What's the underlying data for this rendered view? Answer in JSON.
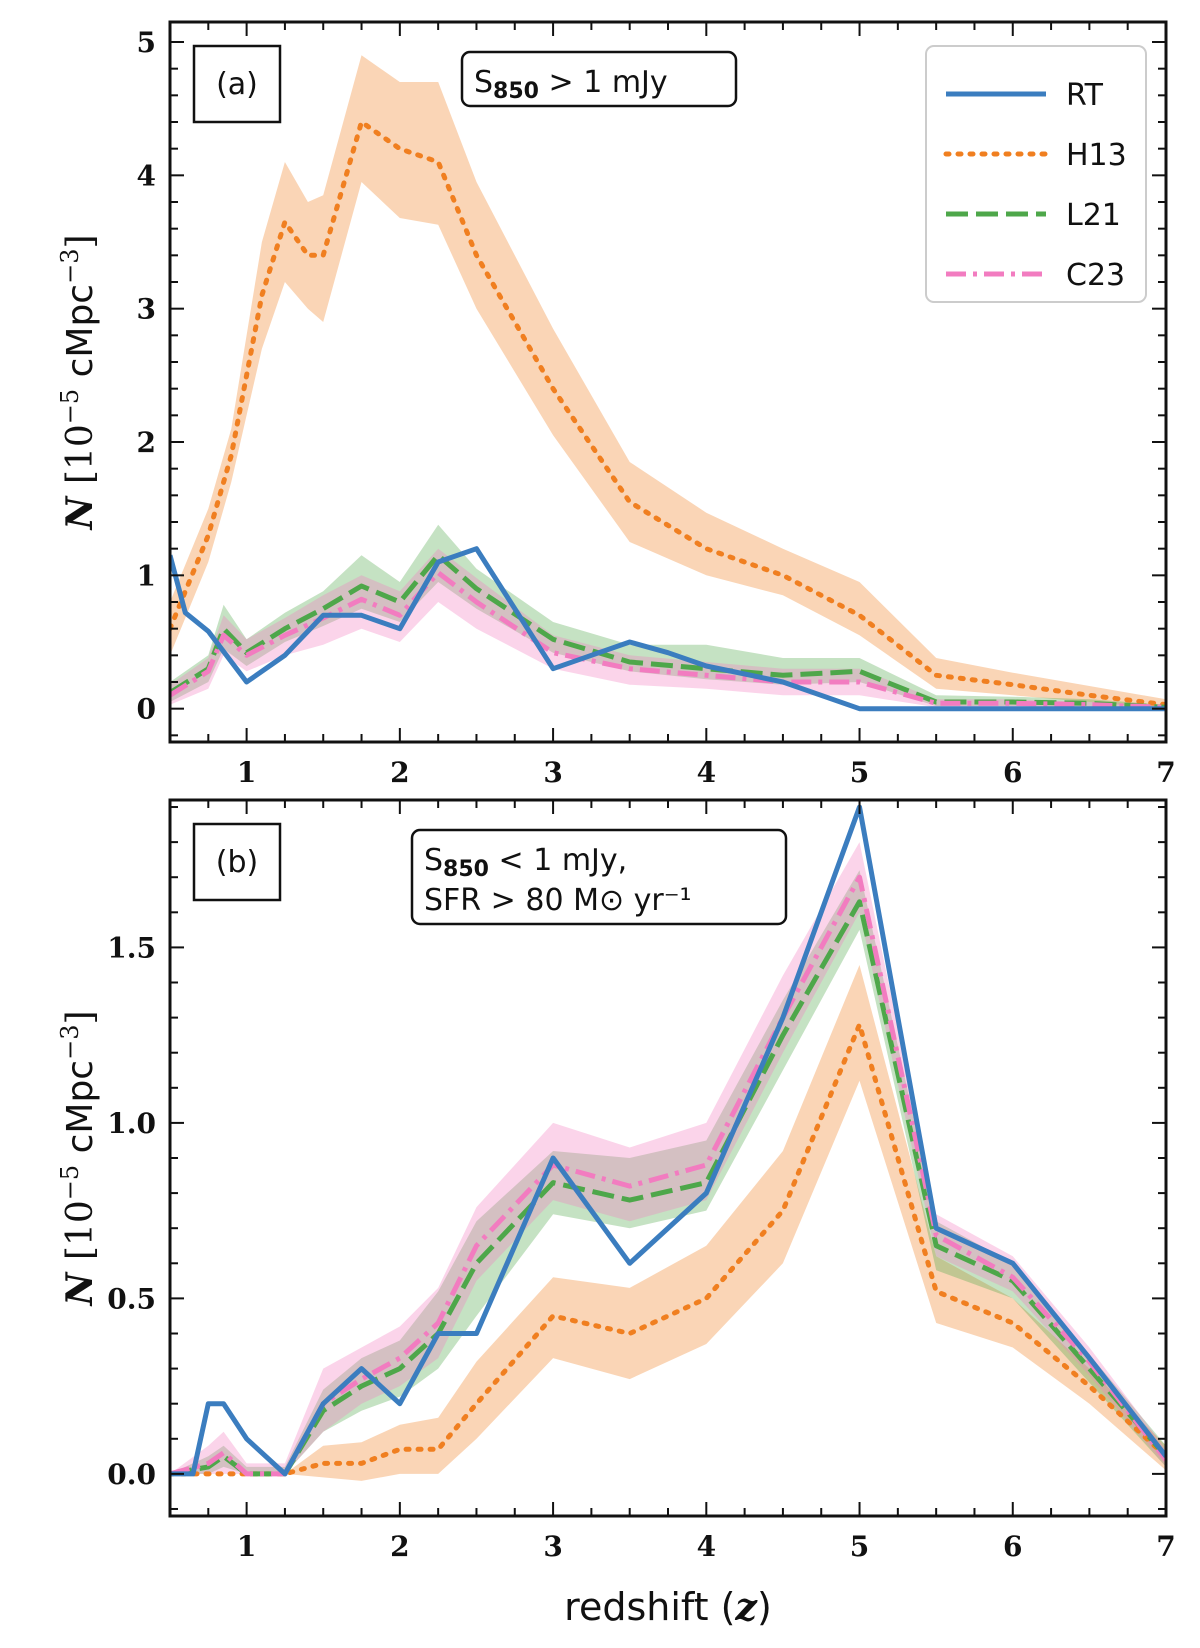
{
  "chart_data": [
    {
      "panel": "a",
      "type": "line",
      "tag": "(a)",
      "annotation": [
        "S850 > 1 mJy"
      ],
      "ylabel": "N [10^-5 cMpc^-3]",
      "xlabel": "",
      "xlim": [
        0.5,
        7
      ],
      "ylim": [
        -0.25,
        5.15
      ],
      "xticks": [
        1,
        2,
        3,
        4,
        5,
        6,
        7
      ],
      "xtick_labels": [
        "1",
        "2",
        "3",
        "4",
        "5",
        "6",
        "7"
      ],
      "yticks": [
        0,
        1,
        2,
        3,
        4,
        5
      ],
      "ytick_labels": [
        "0",
        "1",
        "2",
        "3",
        "4",
        "5"
      ],
      "legend": {
        "position": "top-right",
        "entries": [
          "RT",
          "H13",
          "L21",
          "C23"
        ]
      },
      "series": [
        {
          "name": "RT",
          "style": "solid",
          "color": "#3b7dbf",
          "x": [
            0.5,
            0.6,
            0.75,
            1.0,
            1.25,
            1.5,
            1.75,
            2.0,
            2.25,
            2.5,
            2.75,
            3.0,
            3.25,
            3.5,
            3.75,
            4.0,
            4.5,
            5.0,
            5.5,
            6.0,
            6.5,
            7.0
          ],
          "y": [
            1.15,
            0.72,
            0.58,
            0.2,
            0.4,
            0.7,
            0.7,
            0.6,
            1.1,
            1.2,
            0.75,
            0.3,
            0.4,
            0.5,
            0.42,
            0.32,
            0.2,
            0.0,
            0.0,
            0.0,
            0.0,
            0.0
          ]
        },
        {
          "name": "H13",
          "style": "dotted",
          "color": "#f07f20",
          "x": [
            0.5,
            0.75,
            0.9,
            1.0,
            1.1,
            1.25,
            1.4,
            1.5,
            1.75,
            2.0,
            2.25,
            2.5,
            3.0,
            3.5,
            4.0,
            4.5,
            5.0,
            5.5,
            6.0,
            6.5,
            7.0
          ],
          "y": [
            0.6,
            1.3,
            1.9,
            2.5,
            3.1,
            3.65,
            3.4,
            3.4,
            4.4,
            4.2,
            4.1,
            3.4,
            2.4,
            1.55,
            1.2,
            1.0,
            0.7,
            0.25,
            0.18,
            0.1,
            0.03
          ],
          "band_low": [
            0.4,
            1.1,
            1.7,
            2.2,
            2.7,
            3.2,
            3.0,
            2.9,
            3.95,
            3.68,
            3.63,
            3.0,
            2.05,
            1.25,
            1.0,
            0.85,
            0.55,
            0.15,
            0.1,
            0.05,
            0.0
          ],
          "band_high": [
            0.8,
            1.5,
            2.1,
            2.8,
            3.5,
            4.1,
            3.8,
            3.85,
            4.9,
            4.7,
            4.7,
            3.95,
            2.85,
            1.85,
            1.47,
            1.2,
            0.95,
            0.38,
            0.27,
            0.17,
            0.07
          ]
        },
        {
          "name": "L21",
          "style": "dashed",
          "color": "#4ea74a",
          "x": [
            0.5,
            0.75,
            0.85,
            1.0,
            1.25,
            1.5,
            1.75,
            2.0,
            2.25,
            2.5,
            3.0,
            3.5,
            4.0,
            4.5,
            5.0,
            5.5,
            6.0,
            6.5,
            7.0
          ],
          "y": [
            0.12,
            0.3,
            0.6,
            0.42,
            0.6,
            0.75,
            0.92,
            0.8,
            1.15,
            0.9,
            0.52,
            0.35,
            0.3,
            0.25,
            0.28,
            0.05,
            0.05,
            0.04,
            0.01
          ],
          "band_low": [
            0.05,
            0.2,
            0.45,
            0.32,
            0.5,
            0.62,
            0.75,
            0.65,
            0.95,
            0.75,
            0.42,
            0.28,
            0.22,
            0.18,
            0.2,
            0.02,
            0.02,
            0.01,
            0.0
          ],
          "band_high": [
            0.2,
            0.4,
            0.78,
            0.52,
            0.72,
            0.88,
            1.15,
            0.95,
            1.38,
            1.05,
            0.65,
            0.48,
            0.48,
            0.38,
            0.38,
            0.1,
            0.09,
            0.07,
            0.03
          ]
        },
        {
          "name": "C23",
          "style": "dashdot",
          "color": "#f27cc0",
          "x": [
            0.5,
            0.75,
            0.85,
            1.0,
            1.25,
            1.5,
            1.75,
            2.0,
            2.25,
            2.5,
            3.0,
            3.5,
            4.0,
            4.5,
            5.0,
            5.5,
            6.0,
            6.5,
            7.0
          ],
          "y": [
            0.1,
            0.28,
            0.55,
            0.4,
            0.55,
            0.68,
            0.82,
            0.7,
            1.02,
            0.8,
            0.42,
            0.3,
            0.25,
            0.2,
            0.2,
            0.04,
            0.04,
            0.03,
            0.01
          ],
          "band_low": [
            0.03,
            0.15,
            0.4,
            0.28,
            0.4,
            0.48,
            0.6,
            0.5,
            0.8,
            0.6,
            0.3,
            0.18,
            0.15,
            0.1,
            0.1,
            0.01,
            0.01,
            0.0,
            0.0
          ],
          "band_high": [
            0.18,
            0.38,
            0.7,
            0.52,
            0.68,
            0.85,
            1.0,
            0.88,
            1.2,
            0.98,
            0.55,
            0.4,
            0.35,
            0.3,
            0.3,
            0.07,
            0.07,
            0.05,
            0.02
          ]
        }
      ]
    },
    {
      "panel": "b",
      "type": "line",
      "tag": "(b)",
      "annotation": [
        "S850 < 1 mJy,",
        "SFR > 80 M⊙ yr⁻¹"
      ],
      "ylabel": "N [10^-5 cMpc^-3]",
      "xlabel": "redshift (z)",
      "xlim": [
        0.5,
        7
      ],
      "ylim": [
        -0.12,
        1.92
      ],
      "xticks": [
        1,
        2,
        3,
        4,
        5,
        6,
        7
      ],
      "xtick_labels": [
        "1",
        "2",
        "3",
        "4",
        "5",
        "6",
        "7"
      ],
      "yticks": [
        0.0,
        0.5,
        1.0,
        1.5
      ],
      "ytick_labels": [
        "0.0",
        "0.5",
        "1.0",
        "1.5"
      ],
      "series": [
        {
          "name": "RT",
          "style": "solid",
          "color": "#3b7dbf",
          "x": [
            0.5,
            0.65,
            0.75,
            0.85,
            1.0,
            1.25,
            1.5,
            1.75,
            2.0,
            2.25,
            2.5,
            3.0,
            3.5,
            4.0,
            4.5,
            5.0,
            5.5,
            6.0,
            6.5,
            7.0
          ],
          "y": [
            0.0,
            0.0,
            0.2,
            0.2,
            0.1,
            0.0,
            0.2,
            0.3,
            0.2,
            0.4,
            0.4,
            0.9,
            0.6,
            0.8,
            1.3,
            1.9,
            0.7,
            0.6,
            0.33,
            0.05
          ]
        },
        {
          "name": "H13",
          "style": "dotted",
          "color": "#f07f20",
          "x": [
            0.5,
            0.75,
            1.0,
            1.25,
            1.5,
            1.75,
            2.0,
            2.25,
            2.5,
            3.0,
            3.5,
            4.0,
            4.5,
            5.0,
            5.5,
            6.0,
            6.5,
            7.0
          ],
          "y": [
            0.0,
            0.0,
            0.0,
            0.0,
            0.03,
            0.03,
            0.07,
            0.07,
            0.2,
            0.45,
            0.4,
            0.5,
            0.75,
            1.28,
            0.52,
            0.43,
            0.25,
            0.05
          ],
          "band_low": [
            0.0,
            0.0,
            0.0,
            0.0,
            -0.01,
            -0.02,
            0.0,
            0.0,
            0.1,
            0.33,
            0.27,
            0.37,
            0.6,
            1.12,
            0.43,
            0.36,
            0.2,
            0.01
          ],
          "band_high": [
            0.0,
            0.0,
            0.0,
            0.0,
            0.08,
            0.09,
            0.14,
            0.16,
            0.32,
            0.56,
            0.53,
            0.65,
            0.92,
            1.45,
            0.62,
            0.5,
            0.3,
            0.08
          ]
        },
        {
          "name": "L21",
          "style": "dashed",
          "color": "#4ea74a",
          "x": [
            0.5,
            0.75,
            0.85,
            1.0,
            1.25,
            1.5,
            1.75,
            2.0,
            2.25,
            2.5,
            3.0,
            3.5,
            4.0,
            4.5,
            5.0,
            5.5,
            6.0,
            6.5,
            7.0
          ],
          "y": [
            0.0,
            0.02,
            0.05,
            0.0,
            0.0,
            0.18,
            0.25,
            0.3,
            0.4,
            0.6,
            0.83,
            0.78,
            0.83,
            1.25,
            1.63,
            0.65,
            0.55,
            0.3,
            0.05
          ],
          "band_low": [
            0.0,
            0.0,
            0.02,
            0.0,
            0.0,
            0.12,
            0.18,
            0.22,
            0.3,
            0.45,
            0.74,
            0.7,
            0.75,
            1.15,
            1.55,
            0.58,
            0.5,
            0.26,
            0.02
          ],
          "band_high": [
            0.0,
            0.05,
            0.08,
            0.02,
            0.02,
            0.24,
            0.33,
            0.38,
            0.52,
            0.72,
            0.92,
            0.9,
            0.95,
            1.35,
            1.72,
            0.72,
            0.6,
            0.34,
            0.08
          ]
        },
        {
          "name": "C23",
          "style": "dashdot",
          "color": "#f27cc0",
          "x": [
            0.5,
            0.75,
            0.85,
            1.0,
            1.25,
            1.5,
            1.75,
            2.0,
            2.25,
            2.5,
            3.0,
            3.5,
            4.0,
            4.5,
            5.0,
            5.5,
            6.0,
            6.5,
            7.0
          ],
          "y": [
            0.0,
            0.03,
            0.06,
            0.0,
            0.0,
            0.2,
            0.27,
            0.33,
            0.43,
            0.65,
            0.88,
            0.82,
            0.88,
            1.3,
            1.7,
            0.68,
            0.56,
            0.32,
            0.04
          ],
          "band_low": [
            0.0,
            0.0,
            0.0,
            0.0,
            0.0,
            0.12,
            0.2,
            0.25,
            0.33,
            0.55,
            0.78,
            0.72,
            0.78,
            1.2,
            1.6,
            0.62,
            0.52,
            0.28,
            0.02
          ],
          "band_high": [
            0.0,
            0.08,
            0.12,
            0.03,
            0.03,
            0.3,
            0.36,
            0.42,
            0.53,
            0.76,
            1.0,
            0.93,
            1.0,
            1.42,
            1.8,
            0.74,
            0.62,
            0.36,
            0.07
          ]
        }
      ]
    }
  ]
}
